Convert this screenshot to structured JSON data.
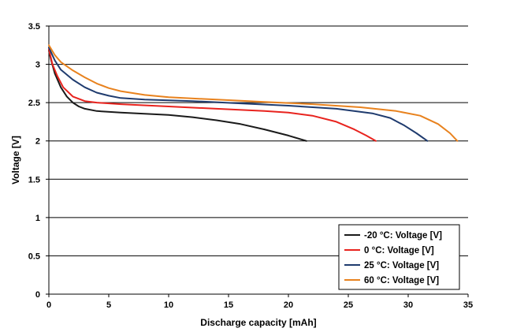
{
  "chart_data": {
    "type": "line",
    "xlabel": "Discharge capacity [mAh]",
    "ylabel": "Voltage [V]",
    "xlim": [
      0,
      35
    ],
    "ylim": [
      0,
      3.5
    ],
    "xticks": [
      0,
      5,
      10,
      15,
      20,
      25,
      30,
      35
    ],
    "yticks": [
      0,
      0.5,
      1,
      1.5,
      2,
      2.5,
      3,
      3.5
    ],
    "ytick_labels": [
      "0",
      "0.5",
      "1",
      "1.5",
      "2",
      "2.5",
      "3",
      "3.5"
    ],
    "grid": "horizontal",
    "legend_position": "bottom-right",
    "series": [
      {
        "name": "-20 °C: Voltage [V]",
        "color": "#1a1a1a",
        "points": [
          [
            0,
            3.18
          ],
          [
            0.2,
            3.05
          ],
          [
            0.5,
            2.88
          ],
          [
            1,
            2.7
          ],
          [
            1.5,
            2.58
          ],
          [
            2,
            2.5
          ],
          [
            2.5,
            2.45
          ],
          [
            3,
            2.42
          ],
          [
            4,
            2.39
          ],
          [
            6,
            2.37
          ],
          [
            8,
            2.355
          ],
          [
            10,
            2.34
          ],
          [
            12,
            2.31
          ],
          [
            14,
            2.27
          ],
          [
            16,
            2.22
          ],
          [
            18,
            2.15
          ],
          [
            20,
            2.07
          ],
          [
            21.5,
            2.0
          ]
        ]
      },
      {
        "name": "0 °C: Voltage [V]",
        "color": "#e8231e",
        "points": [
          [
            0,
            3.2
          ],
          [
            0.3,
            3.0
          ],
          [
            0.7,
            2.85
          ],
          [
            1.2,
            2.7
          ],
          [
            2,
            2.58
          ],
          [
            3,
            2.52
          ],
          [
            4,
            2.5
          ],
          [
            6,
            2.48
          ],
          [
            10,
            2.45
          ],
          [
            14,
            2.42
          ],
          [
            18,
            2.39
          ],
          [
            20,
            2.37
          ],
          [
            22,
            2.33
          ],
          [
            24,
            2.25
          ],
          [
            25.5,
            2.15
          ],
          [
            26.5,
            2.07
          ],
          [
            27.3,
            2.0
          ]
        ]
      },
      {
        "name": "25 °C: Voltage [V]",
        "color": "#1f3b6e",
        "points": [
          [
            0,
            3.22
          ],
          [
            0.5,
            3.05
          ],
          [
            1,
            2.93
          ],
          [
            2,
            2.8
          ],
          [
            3,
            2.7
          ],
          [
            4,
            2.63
          ],
          [
            5,
            2.59
          ],
          [
            6,
            2.56
          ],
          [
            8,
            2.54
          ],
          [
            12,
            2.52
          ],
          [
            16,
            2.49
          ],
          [
            20,
            2.46
          ],
          [
            24,
            2.42
          ],
          [
            27,
            2.36
          ],
          [
            28.5,
            2.3
          ],
          [
            29.7,
            2.2
          ],
          [
            30.7,
            2.1
          ],
          [
            31.6,
            2.0
          ]
        ]
      },
      {
        "name": "60 °C: Voltage [V]",
        "color": "#e8821e",
        "points": [
          [
            0,
            3.25
          ],
          [
            0.5,
            3.12
          ],
          [
            1,
            3.03
          ],
          [
            2,
            2.92
          ],
          [
            3,
            2.83
          ],
          [
            4,
            2.75
          ],
          [
            5,
            2.69
          ],
          [
            6,
            2.65
          ],
          [
            8,
            2.6
          ],
          [
            10,
            2.57
          ],
          [
            14,
            2.54
          ],
          [
            18,
            2.51
          ],
          [
            22,
            2.48
          ],
          [
            26,
            2.44
          ],
          [
            29,
            2.39
          ],
          [
            31,
            2.33
          ],
          [
            32.5,
            2.22
          ],
          [
            33.5,
            2.1
          ],
          [
            34.1,
            2.0
          ]
        ]
      }
    ]
  }
}
